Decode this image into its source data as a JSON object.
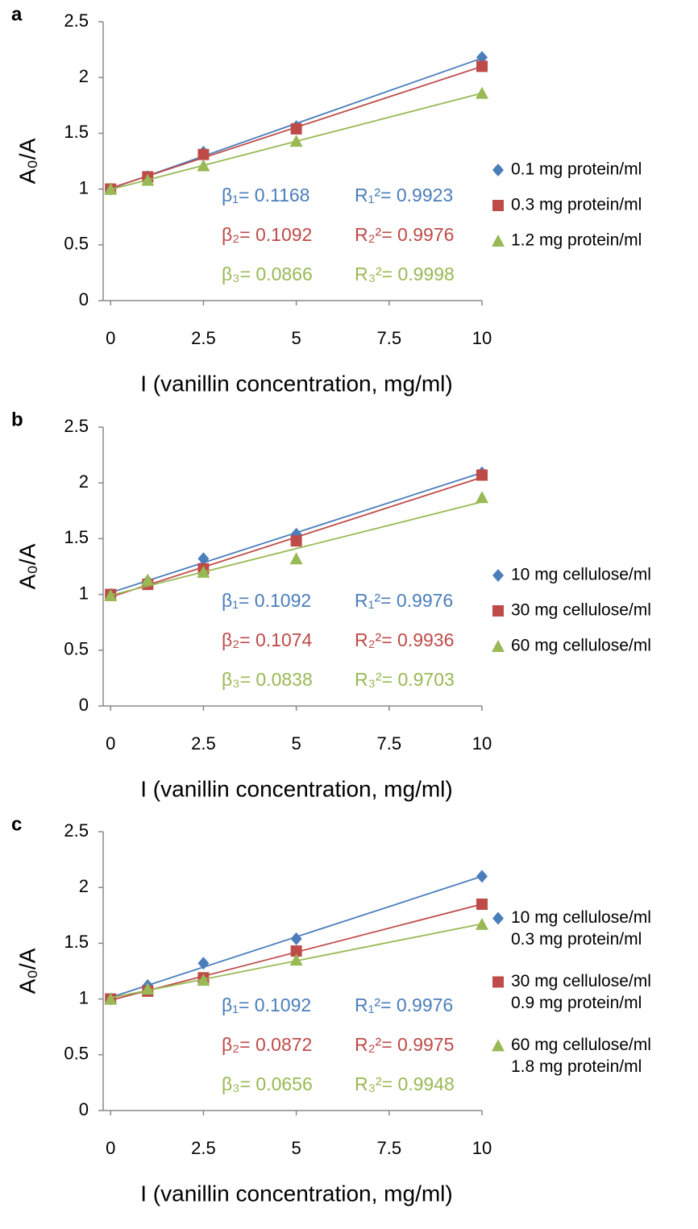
{
  "chart_data": [
    {
      "type": "scatter",
      "label": "a",
      "ylabel": "A₀/A",
      "xlabel": "I (vanillin concentration, mg/ml)",
      "xlim": [
        -0.2,
        10
      ],
      "xticks": [
        0,
        2.5,
        5,
        7.5,
        10
      ],
      "ylim": [
        0,
        2.5
      ],
      "yticks": [
        0,
        0.5,
        1,
        1.5,
        2,
        2.5
      ],
      "trendline": true,
      "x": [
        0,
        1,
        2.5,
        5,
        10
      ],
      "series": [
        {
          "name": [
            "0.1 mg protein/ml"
          ],
          "color": "#4a7ebb",
          "marker": "diamond",
          "values": [
            1,
            1.11,
            1.33,
            1.56,
            2.18
          ]
        },
        {
          "name": [
            "0.3 mg protein/ml"
          ],
          "color": "#be4b48",
          "marker": "square",
          "values": [
            1,
            1.11,
            1.31,
            1.54,
            2.1
          ]
        },
        {
          "name": [
            "1.2 mg protein/ml"
          ],
          "color": "#98b954",
          "marker": "triangle",
          "values": [
            1,
            1.08,
            1.21,
            1.43,
            1.86
          ]
        }
      ],
      "annotations": [
        [
          "β₁= 0.1168",
          "R₁²= 0.9923"
        ],
        [
          "β₂= 0.1092",
          "R₂²= 0.9976"
        ],
        [
          "β₃= 0.0866",
          "R₃²= 0.9998"
        ]
      ]
    },
    {
      "type": "scatter",
      "label": "b",
      "ylabel": "A₀/A",
      "xlabel": "I (vanillin concentration, mg/ml)",
      "xlim": [
        -0.2,
        10
      ],
      "xticks": [
        0,
        2.5,
        5,
        7.5,
        10
      ],
      "ylim": [
        0,
        2.5
      ],
      "yticks": [
        0,
        0.5,
        1,
        1.5,
        2,
        2.5
      ],
      "trendline": true,
      "x": [
        0,
        1,
        2.5,
        5,
        10
      ],
      "series": [
        {
          "name": [
            "10 mg cellulose/ml"
          ],
          "color": "#4a7ebb",
          "marker": "diamond",
          "values": [
            1,
            1.12,
            1.32,
            1.54,
            2.09
          ]
        },
        {
          "name": [
            "30 mg cellulose/ml"
          ],
          "color": "#be4b48",
          "marker": "square",
          "values": [
            1,
            1.09,
            1.23,
            1.48,
            2.07
          ]
        },
        {
          "name": [
            "60 mg cellulose/ml"
          ],
          "color": "#98b954",
          "marker": "triangle",
          "values": [
            0.99,
            1.13,
            1.2,
            1.32,
            1.87
          ]
        }
      ],
      "annotations": [
        [
          "β₁= 0.1092",
          "R₁²= 0.9976"
        ],
        [
          "β₂= 0.1074",
          "R₂²= 0.9936"
        ],
        [
          "β₃= 0.0838",
          "R₃²= 0.9703"
        ]
      ]
    },
    {
      "type": "scatter",
      "label": "c",
      "ylabel": "A₀/A",
      "xlabel": "I (vanillin concentration, mg/ml)",
      "xlim": [
        -0.2,
        10
      ],
      "xticks": [
        0,
        2.5,
        5,
        7.5,
        10
      ],
      "ylim": [
        0,
        2.5
      ],
      "yticks": [
        0,
        0.5,
        1,
        1.5,
        2,
        2.5
      ],
      "trendline": true,
      "x": [
        0,
        1,
        2.5,
        5,
        10
      ],
      "series": [
        {
          "name": [
            "10 mg cellulose/ml",
            "0.3 mg protein/ml"
          ],
          "color": "#4a7ebb",
          "marker": "diamond",
          "values": [
            1,
            1.12,
            1.32,
            1.54,
            2.1
          ]
        },
        {
          "name": [
            "30 mg cellulose/ml",
            "0.9 mg protein/ml"
          ],
          "color": "#be4b48",
          "marker": "square",
          "values": [
            1,
            1.07,
            1.19,
            1.43,
            1.85
          ]
        },
        {
          "name": [
            "60 mg cellulose/ml",
            "1.8 mg protein/ml"
          ],
          "color": "#98b954",
          "marker": "triangle",
          "values": [
            1,
            1.09,
            1.17,
            1.35,
            1.67
          ]
        }
      ],
      "annotations": [
        [
          "β₁= 0.1092",
          "R₁²= 0.9976"
        ],
        [
          "β₂= 0.0872",
          "R₂²= 0.9975"
        ],
        [
          "β₃= 0.0656",
          "R₃²= 0.9948"
        ]
      ]
    }
  ]
}
